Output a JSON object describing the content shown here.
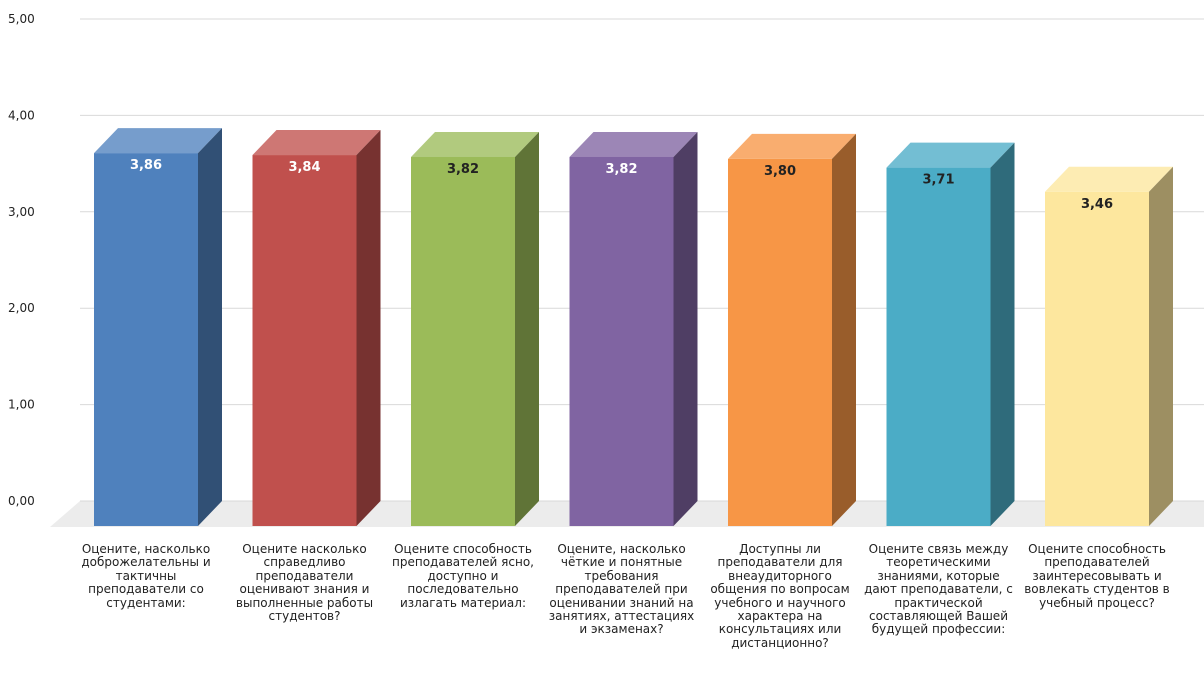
{
  "chart_data": {
    "type": "bar",
    "style": "3d-column",
    "ylim": [
      0,
      5
    ],
    "yticks": [
      "0,00",
      "1,00",
      "2,00",
      "3,00",
      "4,00",
      "5,00"
    ],
    "grid": true,
    "categories": [
      "Оцените, насколько доброжелательны и тактичны преподаватели со студентами:",
      "Оцените насколько справедливо преподаватели оценивают знания и выполненные работы студентов?",
      "Оцените способность преподавателей ясно, доступно и последовательно излагать материал:",
      "Оцените, насколько чёткие и понятные требования преподавателей при оценивании знаний на занятиях, аттестациях и экзаменах?",
      "Доступны ли преподаватели для внеаудиторного общения по вопросам учебного и научного характера на консультациях или дистанционно?",
      "Оцените связь между теоретическими знаниями, которые дают преподаватели, с практической составляющей Вашей будущей профессии:",
      "Оцените способность преподавателей заинтересовывать и вовлекать студентов в учебный процесс?"
    ],
    "values": [
      3.86,
      3.84,
      3.82,
      3.82,
      3.8,
      3.71,
      3.46
    ],
    "value_labels": [
      "3,86",
      "3,84",
      "3,82",
      "3,82",
      "3,80",
      "3,71",
      "3,46"
    ],
    "colors": [
      "#4f81bd",
      "#c0504d",
      "#9bbb59",
      "#8064a2",
      "#f79646",
      "#4bacc6",
      "#fde79e"
    ],
    "label_colors": [
      "#ffffff",
      "#ffffff",
      "#222222",
      "#ffffff",
      "#222222",
      "#222222",
      "#222222"
    ]
  }
}
